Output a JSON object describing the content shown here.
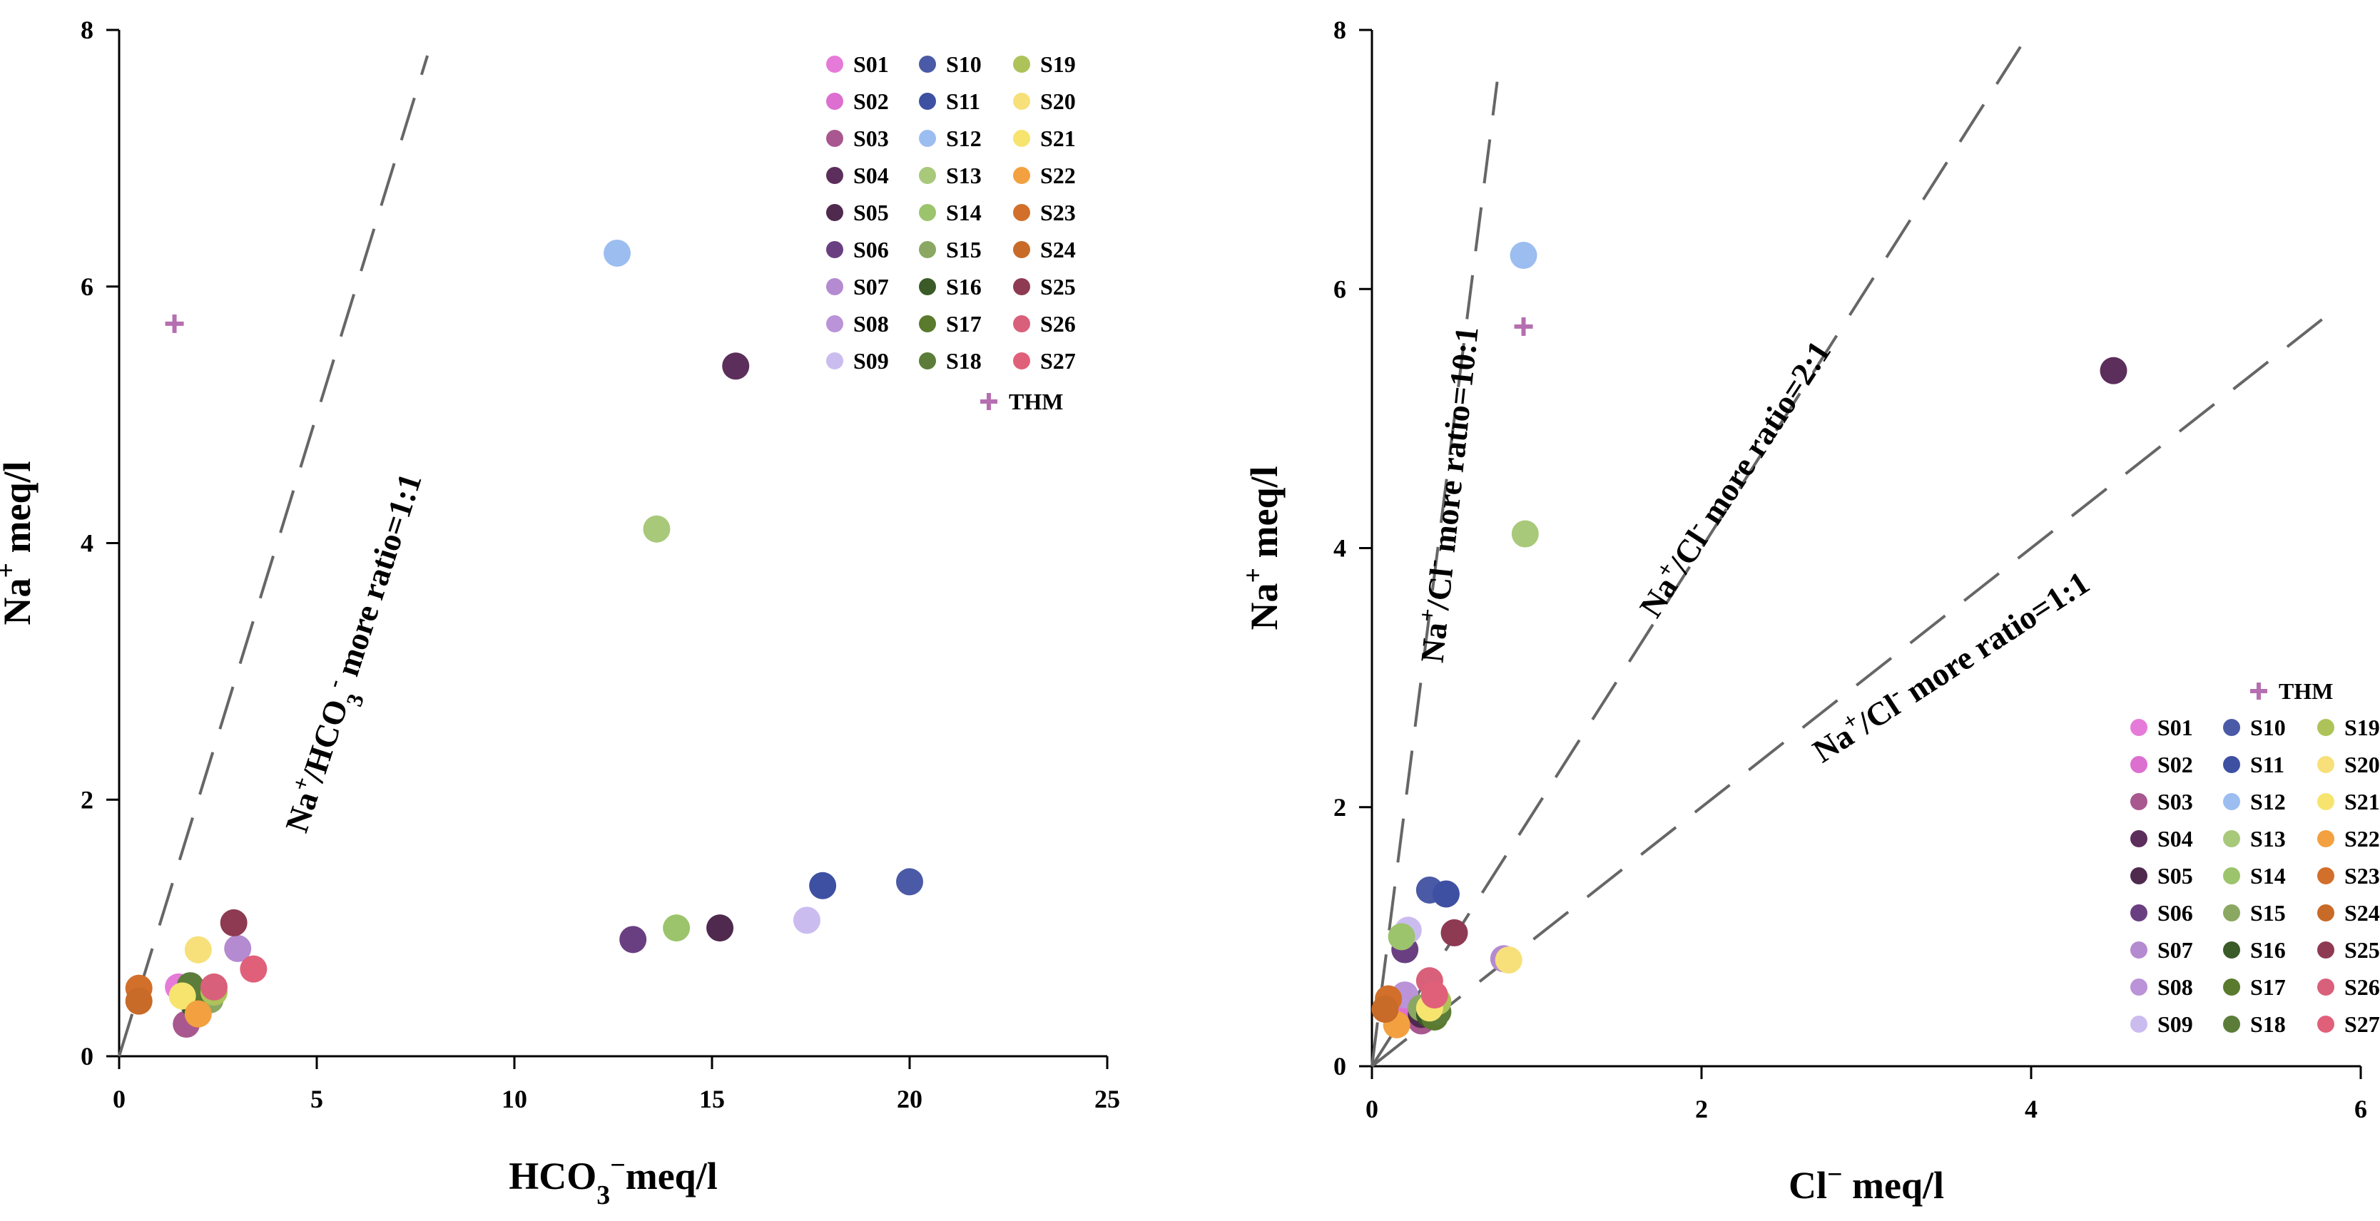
{
  "chart_data": [
    {
      "type": "scatter",
      "xlabel": "HCO3⁻meq/l",
      "xlabel_parts": {
        "main": "HCO",
        "sub": "3",
        "sup": "−",
        "unit": "meq/l"
      },
      "ylabel": "Na⁺ meq/l",
      "ylabel_parts": {
        "main": "Na",
        "sup": "+",
        "unit": " meq/l"
      },
      "xlim": [
        0,
        25
      ],
      "ylim": [
        0,
        8
      ],
      "xticks": [
        "0",
        "5",
        "10",
        "15",
        "20",
        "25"
      ],
      "yticks": [
        "0",
        "2",
        "4",
        "6",
        "8"
      ],
      "xtick_values": [
        0,
        5,
        10,
        15,
        20,
        25
      ],
      "ytick_values": [
        0,
        2,
        4,
        6,
        8
      ],
      "legend_position": "top-right",
      "legend_columns": 3,
      "reference_lines": [
        {
          "label": "Na+/HCO3- more ratio=1:1",
          "slope": 1,
          "x_end": 7.8
        }
      ],
      "annotation_parts": [
        {
          "t": "Na"
        },
        {
          "t": "+",
          "sup": true
        },
        {
          "t": "/HCO"
        },
        {
          "t": "3",
          "sub": true
        },
        {
          "t": "-",
          "sup": true
        },
        {
          "t": " more ratio=1:1"
        }
      ],
      "points": [
        {
          "label": "S01",
          "x": 1.5,
          "y": 0.54
        },
        {
          "label": "S02",
          "x": 2.2,
          "y": 0.48
        },
        {
          "label": "S03",
          "x": 1.7,
          "y": 0.25
        },
        {
          "label": "S04",
          "x": 15.6,
          "y": 5.38
        },
        {
          "label": "S05",
          "x": 15.2,
          "y": 1.0
        },
        {
          "label": "S06",
          "x": 13.0,
          "y": 0.91
        },
        {
          "label": "S07",
          "x": 3.0,
          "y": 0.84
        },
        {
          "label": "S08",
          "x": 1.9,
          "y": 0.4
        },
        {
          "label": "S09",
          "x": 17.4,
          "y": 1.06
        },
        {
          "label": "S10",
          "x": 20.0,
          "y": 1.36
        },
        {
          "label": "S11",
          "x": 17.8,
          "y": 1.33
        },
        {
          "label": "S12",
          "x": 12.6,
          "y": 6.26
        },
        {
          "label": "S13",
          "x": 13.6,
          "y": 4.11
        },
        {
          "label": "S14",
          "x": 14.1,
          "y": 1.0
        },
        {
          "label": "S15",
          "x": 2.3,
          "y": 0.44
        },
        {
          "label": "S16",
          "x": 1.9,
          "y": 0.4
        },
        {
          "label": "S17",
          "x": 2.0,
          "y": 0.5
        },
        {
          "label": "S18",
          "x": 1.8,
          "y": 0.55
        },
        {
          "label": "S19",
          "x": 2.4,
          "y": 0.5
        },
        {
          "label": "S20",
          "x": 2.0,
          "y": 0.83
        },
        {
          "label": "S21",
          "x": 1.6,
          "y": 0.47
        },
        {
          "label": "S22",
          "x": 2.0,
          "y": 0.33
        },
        {
          "label": "S23",
          "x": 0.5,
          "y": 0.53
        },
        {
          "label": "S24",
          "x": 0.5,
          "y": 0.43
        },
        {
          "label": "S25",
          "x": 2.9,
          "y": 1.04
        },
        {
          "label": "S26",
          "x": 2.4,
          "y": 0.54
        },
        {
          "label": "S27",
          "x": 3.4,
          "y": 0.68
        },
        {
          "label": "THM",
          "x": 1.4,
          "y": 5.71,
          "marker": "plus"
        }
      ]
    },
    {
      "type": "scatter",
      "xlabel": "Cl⁻ meq/l",
      "xlabel_parts": {
        "main": "Cl",
        "sup": "−",
        "unit": " meq/l"
      },
      "ylabel": "Na⁺ meq/l",
      "ylabel_parts": {
        "main": "Na",
        "sup": "+",
        "unit": " meq/l"
      },
      "xlim": [
        0,
        6
      ],
      "ylim": [
        0,
        8
      ],
      "xticks": [
        "0",
        "2",
        "4",
        "6"
      ],
      "yticks": [
        "0",
        "2",
        "4",
        "6",
        "8"
      ],
      "xtick_values": [
        0,
        2,
        4,
        6
      ],
      "ytick_values": [
        0,
        2,
        4,
        6,
        8
      ],
      "legend_position": "bottom-right",
      "legend_columns": 3,
      "reference_lines": [
        {
          "label": "Na+/Cl- more ratio=10:1",
          "slope": 10,
          "x_end": 0.76
        },
        {
          "label": "Na+/Cl- more ratio=2:1",
          "slope": 2,
          "x_end": 3.97
        },
        {
          "label": "Na+/Cl- more ratio=1:1",
          "slope": 1,
          "x_end": 5.8
        }
      ],
      "annotation_parts": [
        [
          {
            "t": "Na"
          },
          {
            "t": "+",
            "sup": true
          },
          {
            "t": "/Cl"
          },
          {
            "t": "-",
            "sup": true
          },
          {
            "t": " more ratio=10:1"
          }
        ],
        [
          {
            "t": "Na"
          },
          {
            "t": "+",
            "sup": true
          },
          {
            "t": "/Cl"
          },
          {
            "t": "-",
            "sup": true
          },
          {
            "t": " more ratio=2:1"
          }
        ],
        [
          {
            "t": "Na"
          },
          {
            "t": "+",
            "sup": true
          },
          {
            "t": "/Cl"
          },
          {
            "t": "-",
            "sup": true
          },
          {
            "t": " more ratio=1:1"
          }
        ]
      ],
      "points": [
        {
          "label": "S01",
          "x": 0.2,
          "y": 0.5
        },
        {
          "label": "S02",
          "x": 0.25,
          "y": 0.45
        },
        {
          "label": "S03",
          "x": 0.3,
          "y": 0.35
        },
        {
          "label": "S04",
          "x": 4.5,
          "y": 5.37
        },
        {
          "label": "S05",
          "x": 0.3,
          "y": 0.4
        },
        {
          "label": "S06",
          "x": 0.2,
          "y": 0.9
        },
        {
          "label": "S07",
          "x": 0.8,
          "y": 0.83
        },
        {
          "label": "S08",
          "x": 0.2,
          "y": 0.55
        },
        {
          "label": "S09",
          "x": 0.22,
          "y": 1.05
        },
        {
          "label": "S10",
          "x": 0.35,
          "y": 1.36
        },
        {
          "label": "S11",
          "x": 0.45,
          "y": 1.33
        },
        {
          "label": "S12",
          "x": 0.92,
          "y": 6.26
        },
        {
          "label": "S13",
          "x": 0.93,
          "y": 4.11
        },
        {
          "label": "S14",
          "x": 0.18,
          "y": 1.0
        },
        {
          "label": "S15",
          "x": 0.3,
          "y": 0.45
        },
        {
          "label": "S16",
          "x": 0.35,
          "y": 0.4
        },
        {
          "label": "S17",
          "x": 0.38,
          "y": 0.38
        },
        {
          "label": "S18",
          "x": 0.4,
          "y": 0.42
        },
        {
          "label": "S19",
          "x": 0.4,
          "y": 0.5
        },
        {
          "label": "S20",
          "x": 0.83,
          "y": 0.82
        },
        {
          "label": "S21",
          "x": 0.35,
          "y": 0.45
        },
        {
          "label": "S22",
          "x": 0.15,
          "y": 0.32
        },
        {
          "label": "S23",
          "x": 0.1,
          "y": 0.52
        },
        {
          "label": "S24",
          "x": 0.08,
          "y": 0.44
        },
        {
          "label": "S25",
          "x": 0.5,
          "y": 1.03
        },
        {
          "label": "S26",
          "x": 0.35,
          "y": 0.66
        },
        {
          "label": "S27",
          "x": 0.38,
          "y": 0.55
        },
        {
          "label": "THM",
          "x": 0.92,
          "y": 5.71,
          "marker": "plus"
        }
      ]
    }
  ],
  "series_colors": {
    "S01": "#e67ad9",
    "S02": "#dd6fd0",
    "S03": "#a8578f",
    "S04": "#5c2e5b",
    "S05": "#4f2a4e",
    "S06": "#6a3f82",
    "S07": "#b48ad1",
    "S08": "#ba93d8",
    "S09": "#cbbcf0",
    "S10": "#4a5aa6",
    "S11": "#3e50a2",
    "S12": "#9cbdf0",
    "S13": "#a8c97a",
    "S14": "#9cc46c",
    "S15": "#8aa862",
    "S16": "#3a5a28",
    "S17": "#5a7a2e",
    "S18": "#5b7d39",
    "S19": "#adc35a",
    "S20": "#f7e07a",
    "S21": "#f6e46f",
    "S22": "#f3a040",
    "S23": "#d26f2a",
    "S24": "#c86a28",
    "S25": "#8e3a52",
    "S26": "#d9607a",
    "S27": "#e0607a",
    "THM": "#b56fb0"
  }
}
